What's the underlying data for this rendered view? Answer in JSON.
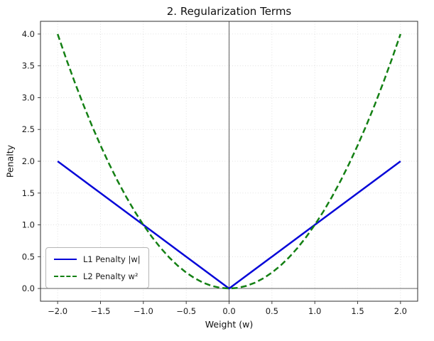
{
  "figure": {
    "background": "#ffffff",
    "grid_color": "#d9d9d9",
    "spine_color": "#2e2e2e",
    "zero_line_color": "#4d4d4d"
  },
  "chart_data": {
    "type": "line",
    "title": "2. Regularization Terms",
    "xlabel": "Weight (w)",
    "ylabel": "Penalty",
    "xlim": [
      -2.2,
      2.2
    ],
    "ylim": [
      -0.2,
      4.2
    ],
    "xticks": [
      -2.0,
      -1.5,
      -1.0,
      -0.5,
      0.0,
      0.5,
      1.0,
      1.5,
      2.0
    ],
    "yticks": [
      0.0,
      0.5,
      1.0,
      1.5,
      2.0,
      2.5,
      3.0,
      3.5,
      4.0
    ],
    "grid": true,
    "zero_lines": true,
    "legend_position": "lower left",
    "series": [
      {
        "name": "L1 Penalty |w|",
        "color": "#0505d8",
        "line_style": "solid",
        "line_width": 2.5,
        "x": [
          -2.0,
          -1.5,
          -1.0,
          -0.5,
          0.0,
          0.5,
          1.0,
          1.5,
          2.0
        ],
        "values": [
          2.0,
          1.5,
          1.0,
          0.5,
          0.0,
          0.5,
          1.0,
          1.5,
          2.0
        ]
      },
      {
        "name": "L2 Penalty w²",
        "color": "#148014",
        "line_style": "dashed",
        "line_width": 2.5,
        "x": [
          -2.0,
          -1.9,
          -1.8,
          -1.7,
          -1.6,
          -1.5,
          -1.4,
          -1.3,
          -1.2,
          -1.1,
          -1.0,
          -0.9,
          -0.8,
          -0.7,
          -0.6,
          -0.5,
          -0.4,
          -0.3,
          -0.2,
          -0.1,
          0.0,
          0.1,
          0.2,
          0.3,
          0.4,
          0.5,
          0.6,
          0.7,
          0.8,
          0.9,
          1.0,
          1.1,
          1.2,
          1.3,
          1.4,
          1.5,
          1.6,
          1.7,
          1.8,
          1.9,
          2.0
        ],
        "values": [
          4.0,
          3.61,
          3.24,
          2.89,
          2.56,
          2.25,
          1.96,
          1.69,
          1.44,
          1.21,
          1.0,
          0.81,
          0.64,
          0.49,
          0.36,
          0.25,
          0.16,
          0.09,
          0.04,
          0.01,
          0.0,
          0.01,
          0.04,
          0.09,
          0.16,
          0.25,
          0.36,
          0.49,
          0.64,
          0.81,
          1.0,
          1.21,
          1.44,
          1.69,
          1.96,
          2.25,
          2.56,
          2.89,
          3.24,
          3.61,
          4.0
        ]
      }
    ]
  }
}
